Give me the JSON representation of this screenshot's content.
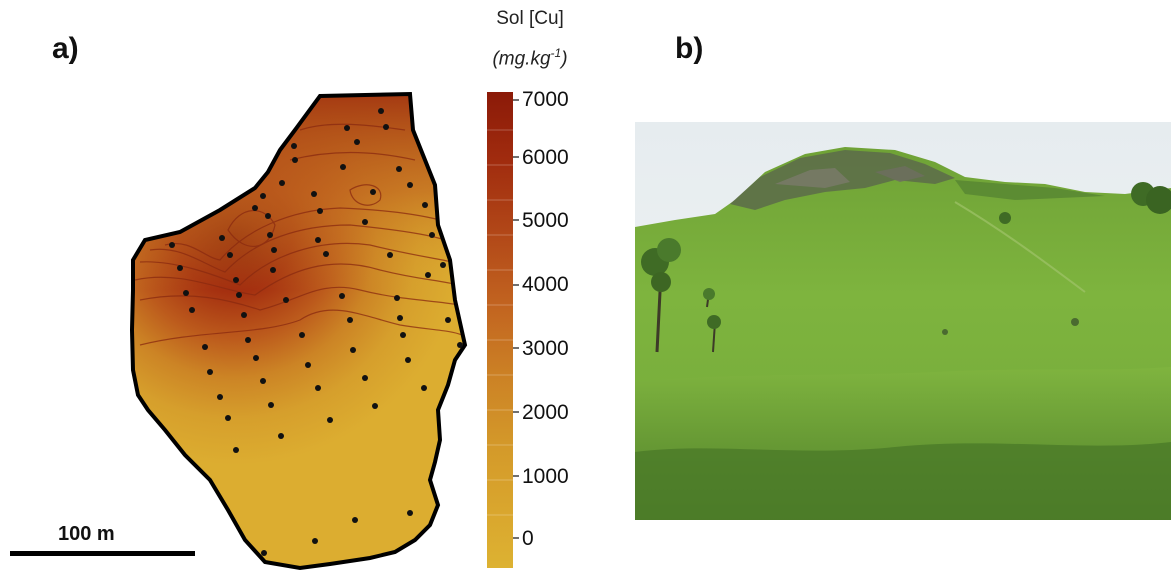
{
  "panels": {
    "a_label": "a)",
    "b_label": "b)"
  },
  "legend": {
    "title_line1": "Sol [Cu]",
    "title_unit_base": "(mg.kg",
    "title_unit_exp": "-1",
    "title_unit_close": ")",
    "ticks": [
      "7000",
      "6000",
      "5000",
      "4000",
      "3000",
      "2000",
      "1000",
      "0"
    ],
    "color_stops": [
      "#8b1a08",
      "#a53010",
      "#b8501a",
      "#c46a20",
      "#cc8425",
      "#d49a2a",
      "#daa82e",
      "#ddb030"
    ]
  },
  "scale_bar": {
    "label": "100 m"
  },
  "colors": {
    "high": "#8b1a08",
    "low": "#dcad30",
    "contour": "#8a2a10",
    "outline": "#000000",
    "sample_point": "#111111"
  },
  "photo": {
    "icon": "hill-landscape-photo"
  }
}
